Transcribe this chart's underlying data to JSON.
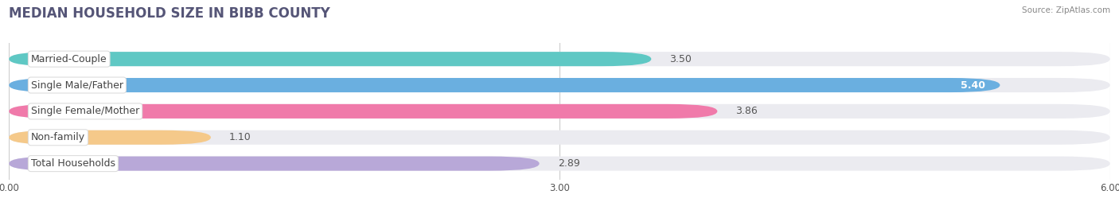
{
  "title": "MEDIAN HOUSEHOLD SIZE IN BIBB COUNTY",
  "source": "Source: ZipAtlas.com",
  "categories": [
    "Married-Couple",
    "Single Male/Father",
    "Single Female/Mother",
    "Non-family",
    "Total Households"
  ],
  "values": [
    3.5,
    5.4,
    3.86,
    1.1,
    2.89
  ],
  "bar_colors": [
    "#5fc8c4",
    "#6aafe0",
    "#f07aaa",
    "#f5c98a",
    "#b8a8d8"
  ],
  "xlim": [
    0,
    6.0
  ],
  "xtick_vals": [
    0.0,
    3.0,
    6.0
  ],
  "xtick_labels": [
    "0.00",
    "3.00",
    "6.00"
  ],
  "background_color": "#ffffff",
  "bar_bg_color": "#ebebf0",
  "bar_gap_color": "#ffffff",
  "title_fontsize": 12,
  "label_fontsize": 9,
  "value_fontsize": 9,
  "value_inside_threshold": 5.0
}
